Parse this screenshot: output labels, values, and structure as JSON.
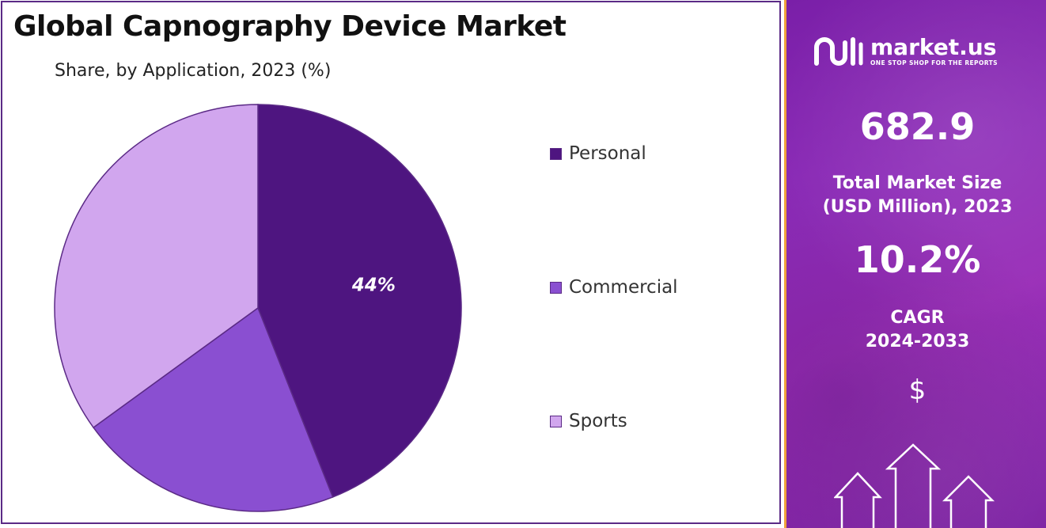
{
  "title": "Global Capnography Device Market",
  "subtitle": "Share, by Application, 2023 (%)",
  "chart_data": {
    "type": "pie",
    "categories": [
      "Personal",
      "Commercial",
      "Sports"
    ],
    "values": [
      44,
      21,
      35
    ],
    "data_labels": [
      "44%",
      "",
      ""
    ],
    "colors": [
      "#4e1580",
      "#8a4fd1",
      "#d1a6ee"
    ],
    "legend_position": "right",
    "start_angle": "12 o'clock",
    "direction": "clockwise"
  },
  "side_panel": {
    "brand_name": "market.us",
    "brand_tagline": "ONE STOP SHOP FOR THE REPORTS",
    "market_size_value": "682.9",
    "market_size_label_line1": "Total Market Size",
    "market_size_label_line2": "(USD Million), 2023",
    "cagr_value": "10.2%",
    "cagr_label_line1": "CAGR",
    "cagr_label_line2": "2024-2033",
    "currency_symbol": "$",
    "icons": [
      "market-us-logo-icon",
      "dollar-icon",
      "up-arrow-icon"
    ]
  }
}
